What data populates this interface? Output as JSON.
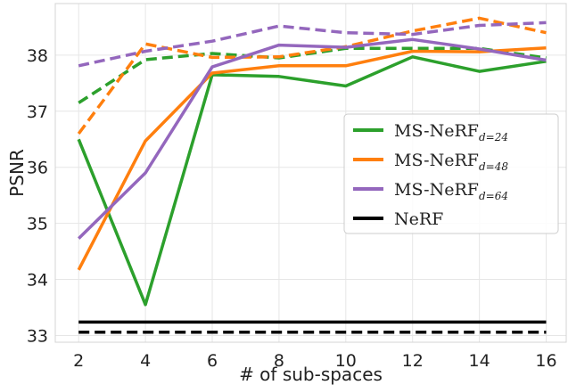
{
  "chart_data": {
    "type": "line",
    "xlabel": "# of sub-spaces",
    "ylabel": "PSNR",
    "x": [
      2,
      4,
      6,
      8,
      10,
      12,
      14,
      16
    ],
    "xlim": [
      1.3,
      16.6
    ],
    "ylim": [
      32.88,
      38.92
    ],
    "x_ticks": [
      2,
      4,
      6,
      8,
      10,
      12,
      14,
      16
    ],
    "y_ticks": [
      33,
      34,
      35,
      36,
      37,
      38
    ],
    "grid": true,
    "legend_position": "center-right",
    "series": [
      {
        "name": "MS-NeRF",
        "subscript": "d=24",
        "color": "#2ca02c",
        "style": "solid",
        "values": [
          36.5,
          33.55,
          37.65,
          37.62,
          37.45,
          37.97,
          37.71,
          37.89
        ]
      },
      {
        "name": "",
        "color": "#2ca02c",
        "style": "dashed",
        "values": [
          37.15,
          37.92,
          38.03,
          37.95,
          38.12,
          38.12,
          38.12,
          37.95
        ]
      },
      {
        "name": "MS-NeRF",
        "subscript": "d=48",
        "color": "#ff7f0e",
        "style": "solid",
        "values": [
          34.17,
          36.47,
          37.68,
          37.81,
          37.81,
          38.07,
          38.06,
          38.13
        ]
      },
      {
        "name": "",
        "color": "#ff7f0e",
        "style": "dashed",
        "values": [
          36.6,
          38.2,
          37.96,
          37.97,
          38.15,
          38.43,
          38.66,
          38.4
        ]
      },
      {
        "name": "MS-NeRF",
        "subscript": "d=64",
        "color": "#9467bd",
        "style": "solid",
        "values": [
          34.73,
          35.9,
          37.79,
          38.18,
          38.14,
          38.28,
          38.11,
          37.91
        ]
      },
      {
        "name": "",
        "color": "#9467bd",
        "style": "dashed",
        "values": [
          37.81,
          38.07,
          38.25,
          38.52,
          38.4,
          38.37,
          38.53,
          38.58
        ]
      },
      {
        "name": "NeRF",
        "color": "#000000",
        "style": "solid",
        "values": [
          33.24,
          33.24,
          33.24,
          33.24,
          33.24,
          33.24,
          33.24,
          33.24
        ]
      },
      {
        "name": "",
        "color": "#000000",
        "style": "dashed",
        "values": [
          33.06,
          33.06,
          33.06,
          33.06,
          33.06,
          33.06,
          33.06,
          33.06
        ]
      }
    ],
    "legend": [
      {
        "label": "MS-NeRF",
        "subscript": "d=24",
        "color": "#2ca02c"
      },
      {
        "label": "MS-NeRF",
        "subscript": "d=48",
        "color": "#ff7f0e"
      },
      {
        "label": "MS-NeRF",
        "subscript": "d=64",
        "color": "#9467bd"
      },
      {
        "label": "NeRF",
        "subscript": "",
        "color": "#000000"
      }
    ]
  }
}
